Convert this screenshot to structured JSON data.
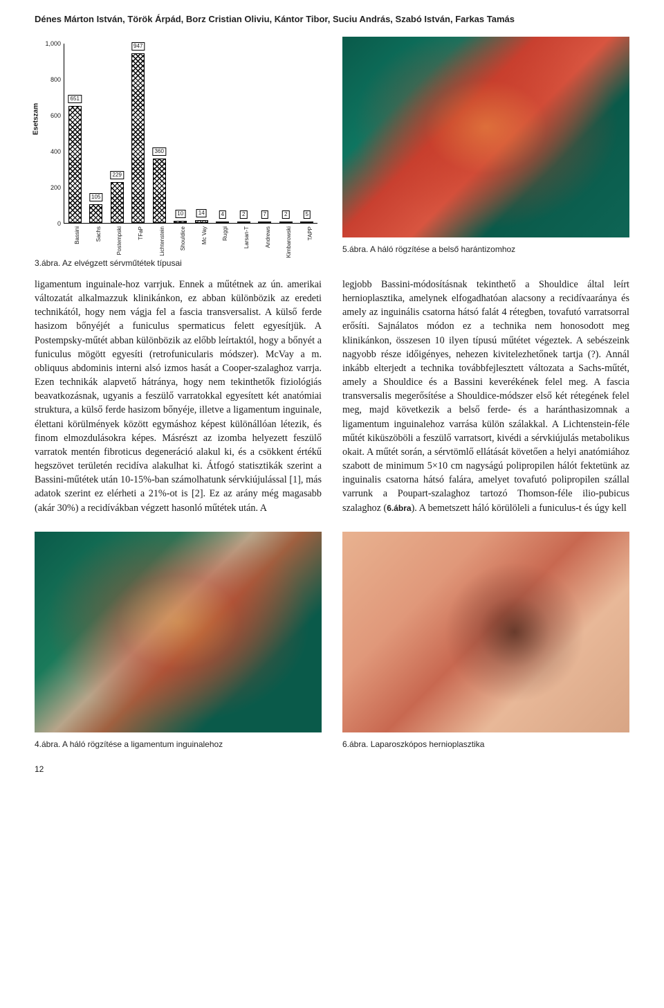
{
  "authors": "Dénes Márton István, Török Árpád, Borz Cristian Oliviu, Kántor Tibor, Suciu András, Szabó István, Farkas Tamás",
  "chart": {
    "type": "bar",
    "y_label": "Esetszam",
    "y_max": 1000,
    "y_ticks": [
      0,
      200,
      400,
      600,
      800,
      1000
    ],
    "y_tick_labels": [
      "0",
      "200",
      "400",
      "600",
      "800",
      "1,000"
    ],
    "background_color": "#ffffff",
    "bar_pattern": "crosshatch",
    "bars": [
      {
        "label": "Bassini",
        "value": 651
      },
      {
        "label": "Sachs",
        "value": 105
      },
      {
        "label": "Postempski",
        "value": 229
      },
      {
        "label": "TFaP",
        "value": 947
      },
      {
        "label": "Lichtenstein",
        "value": 360
      },
      {
        "label": "Shouldice",
        "value": 10
      },
      {
        "label": "Mc Vay",
        "value": 14
      },
      {
        "label": "Ruggi",
        "value": 4
      },
      {
        "label": "Larsan-T",
        "value": 2
      },
      {
        "label": "Andrews",
        "value": 7
      },
      {
        "label": "Kimbarowski",
        "value": 2
      },
      {
        "label": "TAPP",
        "value": 5
      }
    ]
  },
  "fig3_caption": "3.ábra. Az elvégzett sérvműtétek típusai",
  "fig4_caption": "4.ábra. A háló rögzítése a ligamentum inguinalehoz",
  "fig5_caption": "5.ábra. A háló rögzítése a belső harántizomhoz",
  "fig6_caption": "6.ábra. Laparoszkópos hernioplasztika",
  "col_left": "ligamentum inguinale-hoz varrjuk. Ennek a műtétnek az ún. amerikai változatát alkalmazzuk klinikánkon, ez abban különbözik az eredeti technikától, hogy nem vágja fel a fascia transversalist. A külső ferde hasizom bőnyéjét a funiculus spermaticus felett egyesítjük. A Postempsky-műtét abban különbözik az előbb leírtaktól, hogy a bőnyét a funiculus mögött egyesíti (retrofunicularis módszer). McVay a m. obliquus abdominis interni alsó izmos hasát a Cooper-szalaghoz varrja. Ezen technikák alapvető hátránya, hogy nem tekinthetők fiziológiás beavatkozásnak, ugyanis a feszülő varratokkal egyesített két anatómiai struktura, a külső ferde hasizom bőnyéje, illetve a ligamentum inguinale, élettani körülmények között egymáshoz képest különállóan létezik, és finom elmozdulásokra képes. Másrészt az izomba helyezett feszülő varratok mentén fibroticus degeneráció alakul ki, és a csökkent értékű hegszövet területén recidíva alakulhat ki. Átfogó statisztikák szerint a Bassini-műtétek után 10-15%-ban számolhatunk sérvkiújulással [1], más adatok szerint ez elérheti a 21%-ot is [2]. Ez az arány még magasabb (akár 30%) a recidívákban végzett hasonló műtétek után. A",
  "col_right_a": "legjobb Bassini-módosításnak tekinthető a Shouldice által leírt hernioplasztika, amelynek elfogadhatóan alacsony a recidívaaránya és amely az inguinális csatorna hátsó falát 4 rétegben, tovafutó varratsorral erősíti. Sajnálatos módon ez a technika nem honosodott meg klinikánkon, összesen 10 ilyen típusú műtétet végeztek. A sebészeink nagyobb része időigényes, nehezen kivitelezhetőnek tartja (?). Annál inkább elterjedt a technika továbbfejlesztett változata a Sachs-műtét, amely a Shouldice és a Bassini keverékének felel meg. A fascia transversalis megerősítése a Shouldice-módszer első két rétegének felel meg, majd következik a belső ferde- és a haránthasizomnak a ligamentum inguinalehoz varrása külön szálakkal. A Lichtenstein-féle műtét kiküszöböli a feszülő varratsort, kivédi a sérvkiújulás metabolikus okait. A műtét során, a sérvtömlő ellátását követően a helyi anatómiához szabott de minimum 5×10 cm nagyságú polipropilen hálót fektetünk az inguinalis csatorna hátsó falára, amelyet tovafutó polipropilen szállal varrunk a Poupart-szalaghoz tartozó Thomson-féle ilio-pubicus szalaghoz (",
  "inline_ref_6": "6.ábra",
  "col_right_b": "). A bemetszett háló körülöleli a funiculus-t és úgy kell",
  "page_number": "12"
}
